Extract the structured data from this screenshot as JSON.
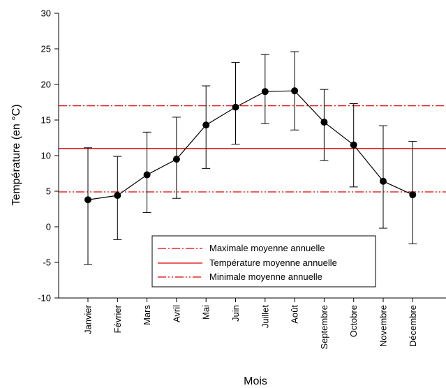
{
  "chart_data": {
    "type": "line",
    "title": "",
    "xlabel": "Mois",
    "ylabel": "Température (en °C)",
    "ylim": [
      -10,
      30
    ],
    "yticks": [
      -10,
      -5,
      0,
      5,
      10,
      15,
      20,
      25,
      30
    ],
    "categories": [
      "Janvier",
      "Février",
      "Mars",
      "Avril",
      "Mai",
      "Juin",
      "Juillet",
      "Août",
      "Septembre",
      "Octobre",
      "Novembre",
      "Décembre"
    ],
    "series": [
      {
        "values": [
          3.8,
          4.4,
          7.3,
          9.5,
          14.3,
          16.8,
          19.0,
          19.1,
          14.7,
          11.5,
          6.4,
          4.5
        ],
        "error_low": [
          -5.3,
          -1.8,
          2.0,
          4.0,
          8.2,
          11.6,
          14.5,
          13.6,
          9.3,
          5.6,
          -0.2,
          -2.4
        ],
        "error_high": [
          11.1,
          9.9,
          13.3,
          15.4,
          19.8,
          23.1,
          24.2,
          24.6,
          19.3,
          17.3,
          14.2,
          12.0
        ],
        "color": "#000000"
      }
    ],
    "reference_lines": [
      {
        "name": "Maximale moyenne annuelle",
        "value": 17.0,
        "style": "dash-dot",
        "color": "#e00000"
      },
      {
        "name": "Température moyenne annuelle",
        "value": 11.0,
        "style": "solid",
        "color": "#e00000"
      },
      {
        "name": "Minimale moyenne annuelle",
        "value": 4.9,
        "style": "dash-dot",
        "color": "#e00000"
      }
    ],
    "legend_position": "bottom-center",
    "grid": false
  }
}
